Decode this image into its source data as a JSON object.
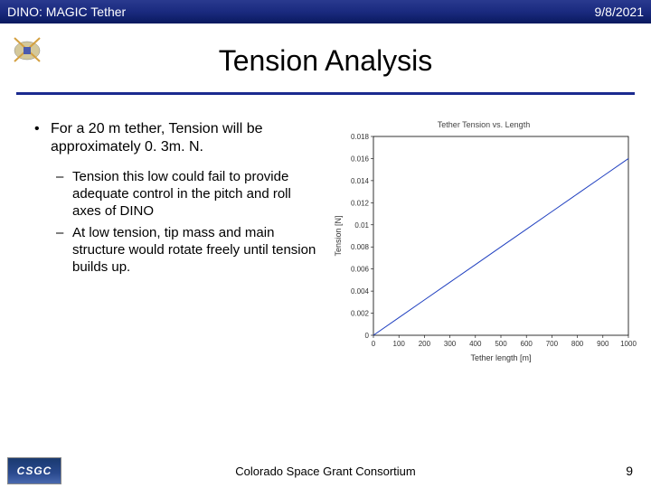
{
  "header": {
    "project": "DINO: MAGIC Tether",
    "date": "9/8/2021"
  },
  "title": "Tension Analysis",
  "bullets": {
    "main": "For a 20 m tether, Tension will be approximately 0. 3m. N.",
    "sub1": "Tension this low could fail to provide adequate control in the pitch and roll axes of DINO",
    "sub2": "At low tension, tip mass and main structure would rotate freely until tension builds up."
  },
  "chart": {
    "type": "line",
    "title": "Tether Tension vs. Length",
    "xlabel": "Tether length [m]",
    "ylabel": "Tension [N]",
    "xlim": [
      0,
      1000
    ],
    "ylim": [
      0,
      0.018
    ],
    "xticks": [
      0,
      100,
      200,
      300,
      400,
      500,
      600,
      700,
      800,
      900,
      1000
    ],
    "yticks": [
      0,
      0.002,
      0.004,
      0.006,
      0.008,
      0.01,
      0.012,
      0.014,
      0.016,
      0.018
    ],
    "ytick_labels": [
      "0",
      "0.002",
      "0.004",
      "0.006",
      "0.008",
      "0.01",
      "0.012",
      "0.014",
      "0.016",
      "0.018"
    ],
    "line_color": "#2040c0",
    "line_width": 1,
    "background_color": "#ffffff",
    "axis_color": "#000000",
    "tick_fontsize": 8,
    "label_fontsize": 9,
    "title_fontsize": 9,
    "data": {
      "x": [
        0,
        100,
        200,
        300,
        400,
        500,
        600,
        700,
        800,
        900,
        1000
      ],
      "y": [
        0,
        0.0016,
        0.0032,
        0.0048,
        0.0064,
        0.008,
        0.0096,
        0.0112,
        0.0128,
        0.0144,
        0.016
      ]
    }
  },
  "footer": {
    "org": "Colorado Space Grant Consortium",
    "logo_text": "CSGC",
    "page": "9"
  },
  "colors": {
    "header_bg": "#1a2a7f",
    "underline": "#1a2a8f"
  }
}
